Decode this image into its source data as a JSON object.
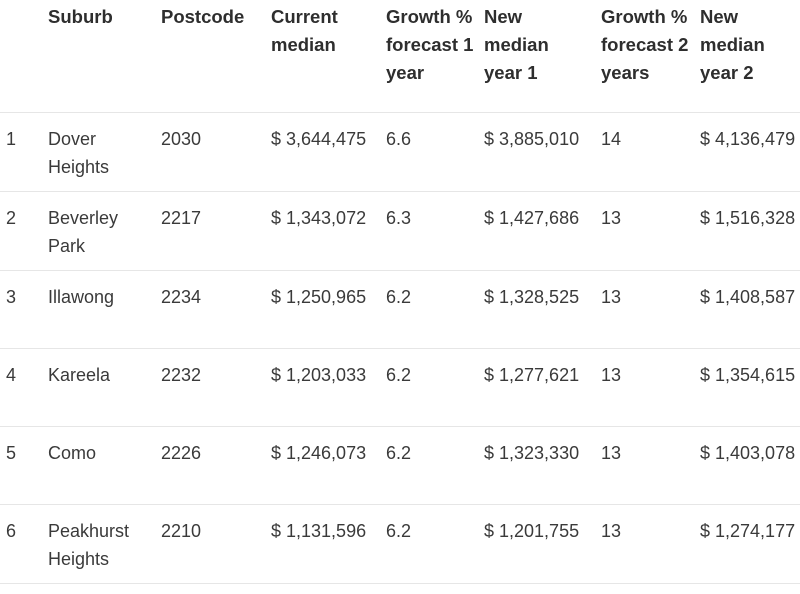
{
  "table": {
    "headers": [
      "",
      "Suburb",
      "Postcode",
      "Current median",
      "Growth % forecast 1 year",
      "New median year 1",
      "Growth % forecast 2 years",
      "New median year 2"
    ],
    "rows": [
      [
        "1",
        "Dover Heights",
        "2030",
        "$ 3,644,475",
        "6.6",
        "$ 3,885,010",
        "14",
        "$ 4,136,479"
      ],
      [
        "2",
        "Beverley Park",
        "2217",
        "$ 1,343,072",
        "6.3",
        "$ 1,427,686",
        "13",
        "$ 1,516,328"
      ],
      [
        "3",
        "Illawong",
        "2234",
        "$ 1,250,965",
        "6.2",
        "$ 1,328,525",
        "13",
        "$ 1,408,587"
      ],
      [
        "4",
        "Kareela",
        "2232",
        "$ 1,203,033",
        "6.2",
        "$ 1,277,621",
        "13",
        "$ 1,354,615"
      ],
      [
        "5",
        "Como",
        "2226",
        "$ 1,246,073",
        "6.2",
        "$ 1,323,330",
        "13",
        "$ 1,403,078"
      ],
      [
        "6",
        "Peakhurst Heights",
        "2210",
        "$ 1,131,596",
        "6.2",
        "$ 1,201,755",
        "13",
        "$ 1,274,177"
      ]
    ]
  }
}
